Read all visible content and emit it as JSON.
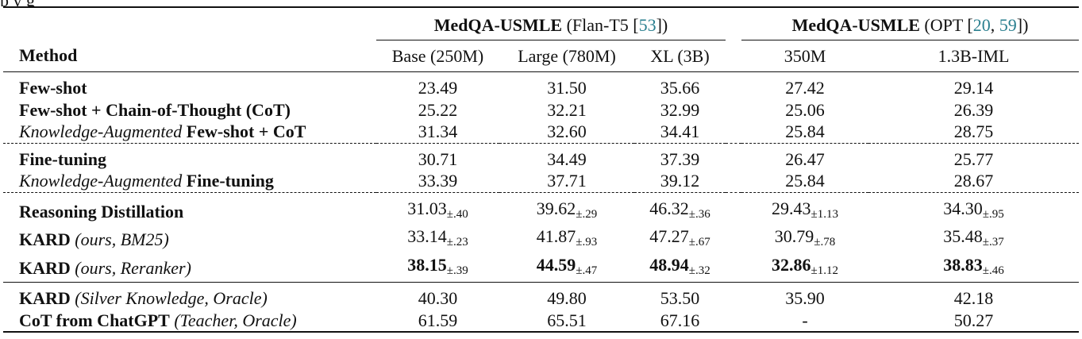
{
  "caption_tail": "p                                                                                                   y                                                                                                   g",
  "header": {
    "group1_name": "MedQA-USMLE",
    "group1_model": "(Flan-T5 [",
    "group1_cite": "53",
    "group1_close": "])",
    "group2_name": "MedQA-USMLE",
    "group2_model": "(OPT [",
    "group2_cite_a": "20",
    "group2_sep": ", ",
    "group2_cite_b": "59",
    "group2_close": "])",
    "method_label": "Method",
    "columns": [
      "Base (250M)",
      "Large (780M)",
      "XL (3B)",
      "350M",
      "1.3B-IML"
    ]
  },
  "rows": [
    {
      "prefix": "",
      "bold": "Few-shot",
      "suffix": "",
      "values": [
        "23.49",
        "31.50",
        "35.66",
        "27.42",
        "29.14"
      ],
      "std": [
        "",
        "",
        "",
        "",
        ""
      ]
    },
    {
      "prefix": "",
      "bold": "Few-shot + Chain-of-Thought (CoT)",
      "suffix": "",
      "values": [
        "25.22",
        "32.21",
        "32.99",
        "25.06",
        "26.39"
      ],
      "std": [
        "",
        "",
        "",
        "",
        ""
      ]
    },
    {
      "prefix": "Knowledge-Augmented",
      "bold": "Few-shot + CoT",
      "suffix": "",
      "values": [
        "31.34",
        "32.60",
        "34.41",
        "25.84",
        "28.75"
      ],
      "std": [
        "",
        "",
        "",
        "",
        ""
      ]
    },
    {
      "prefix": "",
      "bold": "Fine-tuning",
      "suffix": "",
      "values": [
        "30.71",
        "34.49",
        "37.39",
        "26.47",
        "25.77"
      ],
      "std": [
        "",
        "",
        "",
        "",
        ""
      ]
    },
    {
      "prefix": "Knowledge-Augmented",
      "bold": "Fine-tuning",
      "suffix": "",
      "values": [
        "33.39",
        "37.71",
        "39.12",
        "25.84",
        "28.67"
      ],
      "std": [
        "",
        "",
        "",
        "",
        ""
      ]
    },
    {
      "prefix": "",
      "bold": "Reasoning Distillation",
      "suffix": "",
      "values": [
        "31.03",
        "39.62",
        "46.32",
        "29.43",
        "34.30"
      ],
      "std": [
        "±.40",
        "±.29",
        "±.36",
        "±1.13",
        "±.95"
      ]
    },
    {
      "prefix": "",
      "bold": "KARD",
      "suffix": "(ours, BM25)",
      "values": [
        "33.14",
        "41.87",
        "47.27",
        "30.79",
        "35.48"
      ],
      "std": [
        "±.23",
        "±.93",
        "±.67",
        "±.78",
        "±.37"
      ]
    },
    {
      "prefix": "",
      "bold": "KARD",
      "suffix": "(ours, Reranker)",
      "values": [
        "38.15",
        "44.59",
        "48.94",
        "32.86",
        "38.83"
      ],
      "std": [
        "±.39",
        "±.47",
        "±.32",
        "±1.12",
        "±.46"
      ]
    },
    {
      "prefix": "",
      "bold": "KARD",
      "suffix": "(Silver Knowledge, Oracle)",
      "values": [
        "40.30",
        "49.80",
        "53.50",
        "35.90",
        "42.18"
      ],
      "std": [
        "",
        "",
        "",
        "",
        ""
      ]
    },
    {
      "prefix": "",
      "bold": "CoT from ChatGPT",
      "suffix": "(Teacher, Oracle)",
      "values": [
        "61.59",
        "65.51",
        "67.16",
        "-",
        "50.27"
      ],
      "std": [
        "",
        "",
        "",
        "",
        ""
      ]
    }
  ]
}
